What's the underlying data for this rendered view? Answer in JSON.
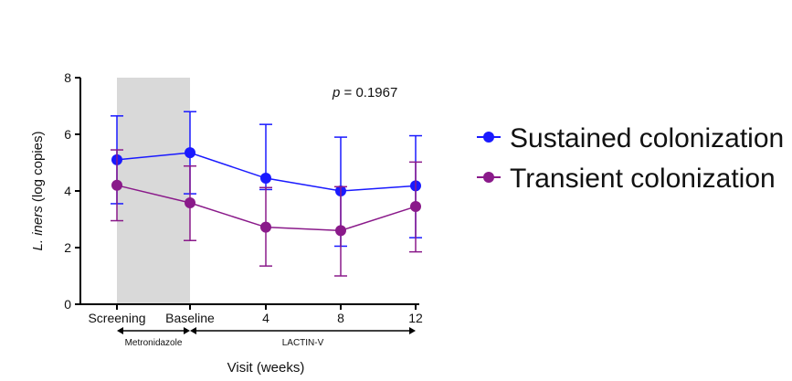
{
  "chart_data": {
    "type": "line",
    "categories": [
      "Screening",
      "Baseline",
      "4",
      "8",
      "12"
    ],
    "xlabel": "Visit (weeks)",
    "ylabel_italic": "L. iners",
    "ylabel_rest": " (log copies)",
    "ylim": [
      0,
      8
    ],
    "yticks": [
      "0",
      "2",
      "4",
      "6",
      "8"
    ],
    "grid": false,
    "legend_position": "right",
    "annotation": {
      "prefix": "p",
      "text": " = 0.1967"
    },
    "shaded_region": {
      "from": "Screening",
      "to": "Baseline",
      "color": "#d9d9d9"
    },
    "periods": [
      {
        "label": "Metronidazole",
        "from": "Screening",
        "to": "Baseline"
      },
      {
        "label": "LACTIN-V",
        "from": "Baseline",
        "to": "12"
      }
    ],
    "series": [
      {
        "name": "Sustained colonization",
        "color": "#1a1aff",
        "values": [
          5.1,
          5.35,
          4.45,
          4.0,
          4.18
        ],
        "err_low": [
          3.55,
          3.9,
          4.05,
          2.05,
          2.35
        ],
        "err_high": [
          6.65,
          6.8,
          6.35,
          5.9,
          5.95
        ]
      },
      {
        "name": "Transient colonization",
        "color": "#8a1a8a",
        "values": [
          4.2,
          3.58,
          2.72,
          2.6,
          3.45
        ],
        "err_low": [
          2.95,
          2.25,
          1.35,
          1.0,
          1.85
        ],
        "err_high": [
          5.45,
          4.88,
          4.12,
          4.15,
          5.02
        ]
      }
    ]
  }
}
